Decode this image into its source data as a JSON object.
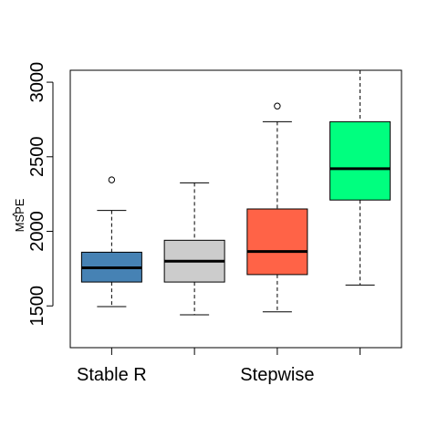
{
  "chart_data": {
    "type": "box",
    "ylabel": "MSPE",
    "ylabel_hat": "^",
    "ylim": [
      1220,
      3080
    ],
    "yticks": [
      1500,
      2000,
      2500,
      3000
    ],
    "ytick_labels": [
      "1500",
      "2000",
      "2500",
      "3000"
    ],
    "category_labels": [
      "Stable R",
      "",
      "Stepwise",
      ""
    ],
    "grid": false,
    "boxes": [
      {
        "color": "#4682B4",
        "whisker_low": 1495,
        "q1": 1660,
        "median": 1755,
        "q3": 1860,
        "whisker_high": 2140,
        "outliers": [
          2345
        ]
      },
      {
        "color": "#CCCCCC",
        "whisker_low": 1440,
        "q1": 1660,
        "median": 1800,
        "q3": 1940,
        "whisker_high": 2325,
        "outliers": []
      },
      {
        "color": "#FF6347",
        "whisker_low": 1460,
        "q1": 1710,
        "median": 1865,
        "q3": 2150,
        "whisker_high": 2735,
        "outliers": [
          2840
        ]
      },
      {
        "color": "#00FF7F",
        "whisker_low": 1640,
        "q1": 2210,
        "median": 2420,
        "q3": 2735,
        "whisker_high": 3080,
        "outliers": []
      }
    ]
  }
}
